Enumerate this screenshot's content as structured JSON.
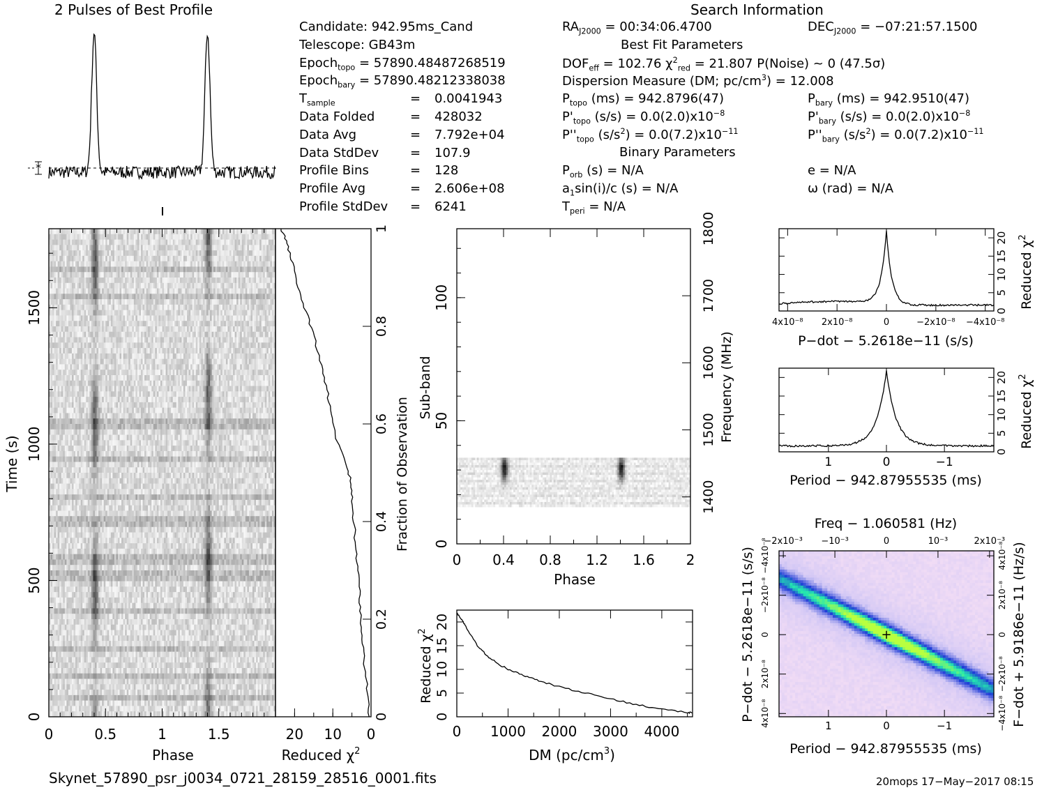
{
  "header": {
    "profile_title": "2 Pulses of Best Profile",
    "search_title": "Search Information",
    "best_fit_title": "Best Fit Parameters",
    "binary_title": "Binary Parameters"
  },
  "info_left": [
    {
      "k": "Candidate:  ",
      "v": "942.95ms_Cand"
    },
    {
      "k": "Telescope:  ",
      "v": "GB43m"
    },
    {
      "k": "Epoch",
      "sub": "topo",
      "eq": " = ",
      "v": "57890.48487268519"
    },
    {
      "k": "Epoch",
      "sub": "bary",
      "eq": " = ",
      "v": "57890.48212338038"
    },
    {
      "k": "T",
      "sub": "sample",
      "eq": "=",
      "v": "0.0041943"
    },
    {
      "k": "Data Folded",
      "eq": "=",
      "v": "428032"
    },
    {
      "k": "Data Avg",
      "eq": "=",
      "v": "7.792e+04"
    },
    {
      "k": "Data StdDev",
      "eq": "=",
      "v": "107.9"
    },
    {
      "k": "Profile Bins",
      "eq": "=",
      "v": "128"
    },
    {
      "k": "Profile Avg",
      "eq": "=",
      "v": "2.606e+08"
    },
    {
      "k": "Profile StdDev",
      "eq": "=",
      "v": "6241"
    }
  ],
  "info_mid": {
    "ra": "RA<sub>J2000</sub> = 00:34:06.4700",
    "dof": "DOF<sub>eff</sub> = 102.76  χ<sup>2</sup><sub>red</sub> = 21.807  P(Noise) ~ 0   (47.5σ)",
    "dm": "Dispersion Measure (DM; pc/cm<sup>3</sup>) = 12.008",
    "ptopo": "P<sub>topo</sub> (ms) =  942.8796(47)",
    "pdtopo": "P'<sub>topo</sub> (s/s) = 0.0(2.0)x10<sup>−8</sup>",
    "pddtopo": "P''<sub>topo</sub> (s/s<sup>2</sup>) = 0.0(7.2)x10<sup>−11</sup>",
    "porb": "P<sub>orb</sub> (s) = N/A",
    "a1": "a<sub>1</sub>sin(i)/c (s) = N/A",
    "tperi": "T<sub>peri</sub> = N/A"
  },
  "info_right": {
    "dec": "DEC<sub>J2000</sub> = −07:21:57.1500",
    "pbary": "P<sub>bary</sub> (ms) =  942.9510(47)",
    "pdbary": "P'<sub>bary</sub> (s/s) = 0.0(2.0)x10<sup>−8</sup>",
    "pddbary": "P''<sub>bary</sub> (s/s<sup>2</sup>) = 0.0(7.2)x10<sup>−11</sup>",
    "e": "e = N/A",
    "omega": "ω (rad) = N/A"
  },
  "footer": {
    "filename": "Skynet_57890_psr_j0034_0721_28159_28516_0001.fits",
    "stamp": "20mops 17−May−2017 08:15"
  },
  "colors": {
    "ink": "#000000",
    "grid_dark": "#1a1a1a",
    "heat_low": "#f1dcf5",
    "heat_mid": "#1e3cd6",
    "heat_high": "#24e7b0",
    "heat_peak": "#b8ff40"
  },
  "chart_data": [
    {
      "id": "profile",
      "type": "line",
      "title": "2 Pulses of Best Profile",
      "x": "phase 0–2 (two pulses)",
      "peaks_phase": [
        0.4,
        1.4
      ],
      "xlim": [
        0,
        2
      ]
    },
    {
      "id": "time_phase",
      "type": "heatmap",
      "xlabel": "Phase",
      "ylabel": "Time (s)",
      "xticks": [
        "0",
        "0.5",
        "1",
        "1.5"
      ],
      "yticks": [
        "0",
        "500",
        "1000",
        "1500"
      ],
      "xlim": [
        0,
        2
      ],
      "ylim": [
        0,
        1790
      ],
      "right_axis_label": "Fraction of Observation",
      "right_ticks": [
        "0",
        "0.2",
        "0.4",
        "0.6",
        "0.8",
        "1"
      ]
    },
    {
      "id": "reduced_chi2_time",
      "type": "line",
      "xlabel": "Reduced χ",
      "xticks": [
        "20",
        "10",
        "0"
      ],
      "xlim": [
        25,
        0
      ],
      "points": [
        [
          23.5,
          1
        ],
        [
          22,
          0.97
        ],
        [
          20.5,
          0.93
        ],
        [
          19,
          0.88
        ],
        [
          17,
          0.83
        ],
        [
          15,
          0.78
        ],
        [
          13,
          0.72
        ],
        [
          11.5,
          0.67
        ],
        [
          10.5,
          0.62
        ],
        [
          9,
          0.57
        ],
        [
          7,
          0.53
        ],
        [
          5.5,
          0.49
        ],
        [
          5,
          0.45
        ],
        [
          4.5,
          0.4
        ],
        [
          4,
          0.35
        ],
        [
          3.5,
          0.3
        ],
        [
          3,
          0.25
        ],
        [
          2.6,
          0.2
        ],
        [
          2.2,
          0.15
        ],
        [
          1.6,
          0.1
        ],
        [
          1,
          0.05
        ],
        [
          0.5,
          0
        ]
      ]
    },
    {
      "id": "subband_phase",
      "type": "heatmap",
      "xlabel": "Phase",
      "ylabel": "Sub-band",
      "xticks": [
        "0",
        "0.4",
        "0.8",
        "1.2",
        "1.6",
        "2"
      ],
      "yticks": [
        "0",
        "50",
        "100"
      ],
      "xlim": [
        0,
        2
      ],
      "ylim": [
        0,
        128
      ],
      "right_axis_label": "Frequency (MHz)",
      "right_ticks": [
        "1400",
        "1500",
        "1600",
        "1700",
        "1800"
      ],
      "band_rows": [
        15,
        35
      ]
    },
    {
      "id": "dm_curve",
      "type": "line",
      "xlabel": "DM (pc/cm³)",
      "ylabel": "Reduced χ",
      "xticks": [
        "0",
        "1000",
        "2000",
        "3000",
        "4000"
      ],
      "yticks": [
        "0",
        "5",
        "10",
        "15",
        "20"
      ],
      "xlim": [
        0,
        4600
      ],
      "ylim": [
        0,
        22.5
      ],
      "points": [
        [
          0,
          21.8
        ],
        [
          100,
          20.5
        ],
        [
          200,
          18.5
        ],
        [
          400,
          15
        ],
        [
          600,
          12.8
        ],
        [
          800,
          11.2
        ],
        [
          1000,
          10
        ],
        [
          1300,
          8.7
        ],
        [
          1600,
          7.6
        ],
        [
          2000,
          6.3
        ],
        [
          2500,
          5
        ],
        [
          3000,
          3.8
        ],
        [
          3500,
          2.6
        ],
        [
          4000,
          1.6
        ],
        [
          4500,
          0.9
        ],
        [
          4600,
          0.8
        ]
      ]
    },
    {
      "id": "pdot_curve",
      "type": "line",
      "xlabel": "P−dot − 5.2618e−11 (s/s)",
      "ylabel": "Reduced χ",
      "xticks": [
        "4x10⁻⁸",
        "2x10⁻⁸",
        "0",
        "−2x10⁻⁸",
        "−4x10⁻⁸"
      ],
      "yticks": [
        "0",
        "5",
        "10",
        "15",
        "20"
      ],
      "xlim": [
        4.2e-08,
        -4.2e-08
      ],
      "ylim": [
        0,
        22.5
      ],
      "peak": 21.8
    },
    {
      "id": "period_curve",
      "type": "line",
      "xlabel": "Period − 942.87955535 (ms)",
      "ylabel": "Reduced χ",
      "xticks": [
        "1",
        "0",
        "−1"
      ],
      "yticks": [
        "0",
        "5",
        "10",
        "15",
        "20"
      ],
      "xlim": [
        1.9,
        -1.9
      ],
      "ylim": [
        0,
        22.5
      ],
      "peak": 21.8
    },
    {
      "id": "p_pdot_plane",
      "type": "heatmap",
      "title": "Freq − 1.060581 (Hz)",
      "xlabel": "Period − 942.87955535 (ms)",
      "ylabel": "P−dot − 5.2618e−11 (s/s)",
      "right_axis_label": "F−dot + 5.9186e−11 (Hz/s)",
      "xticks": [
        "1",
        "0",
        "−1"
      ],
      "top_ticks": [
        "−2x10⁻³",
        "−10⁻³",
        "0",
        "10⁻³",
        "2x10⁻³"
      ],
      "yticks": [
        "4x10⁻⁸",
        "2x10⁻⁸",
        "0",
        "−2x10⁻⁸",
        "−4x10⁻⁸"
      ],
      "right_ticks": [
        "−4x10⁻⁸",
        "−2x10⁻⁸",
        "0",
        "2x10⁻⁸",
        "4x10⁻⁸"
      ]
    }
  ]
}
